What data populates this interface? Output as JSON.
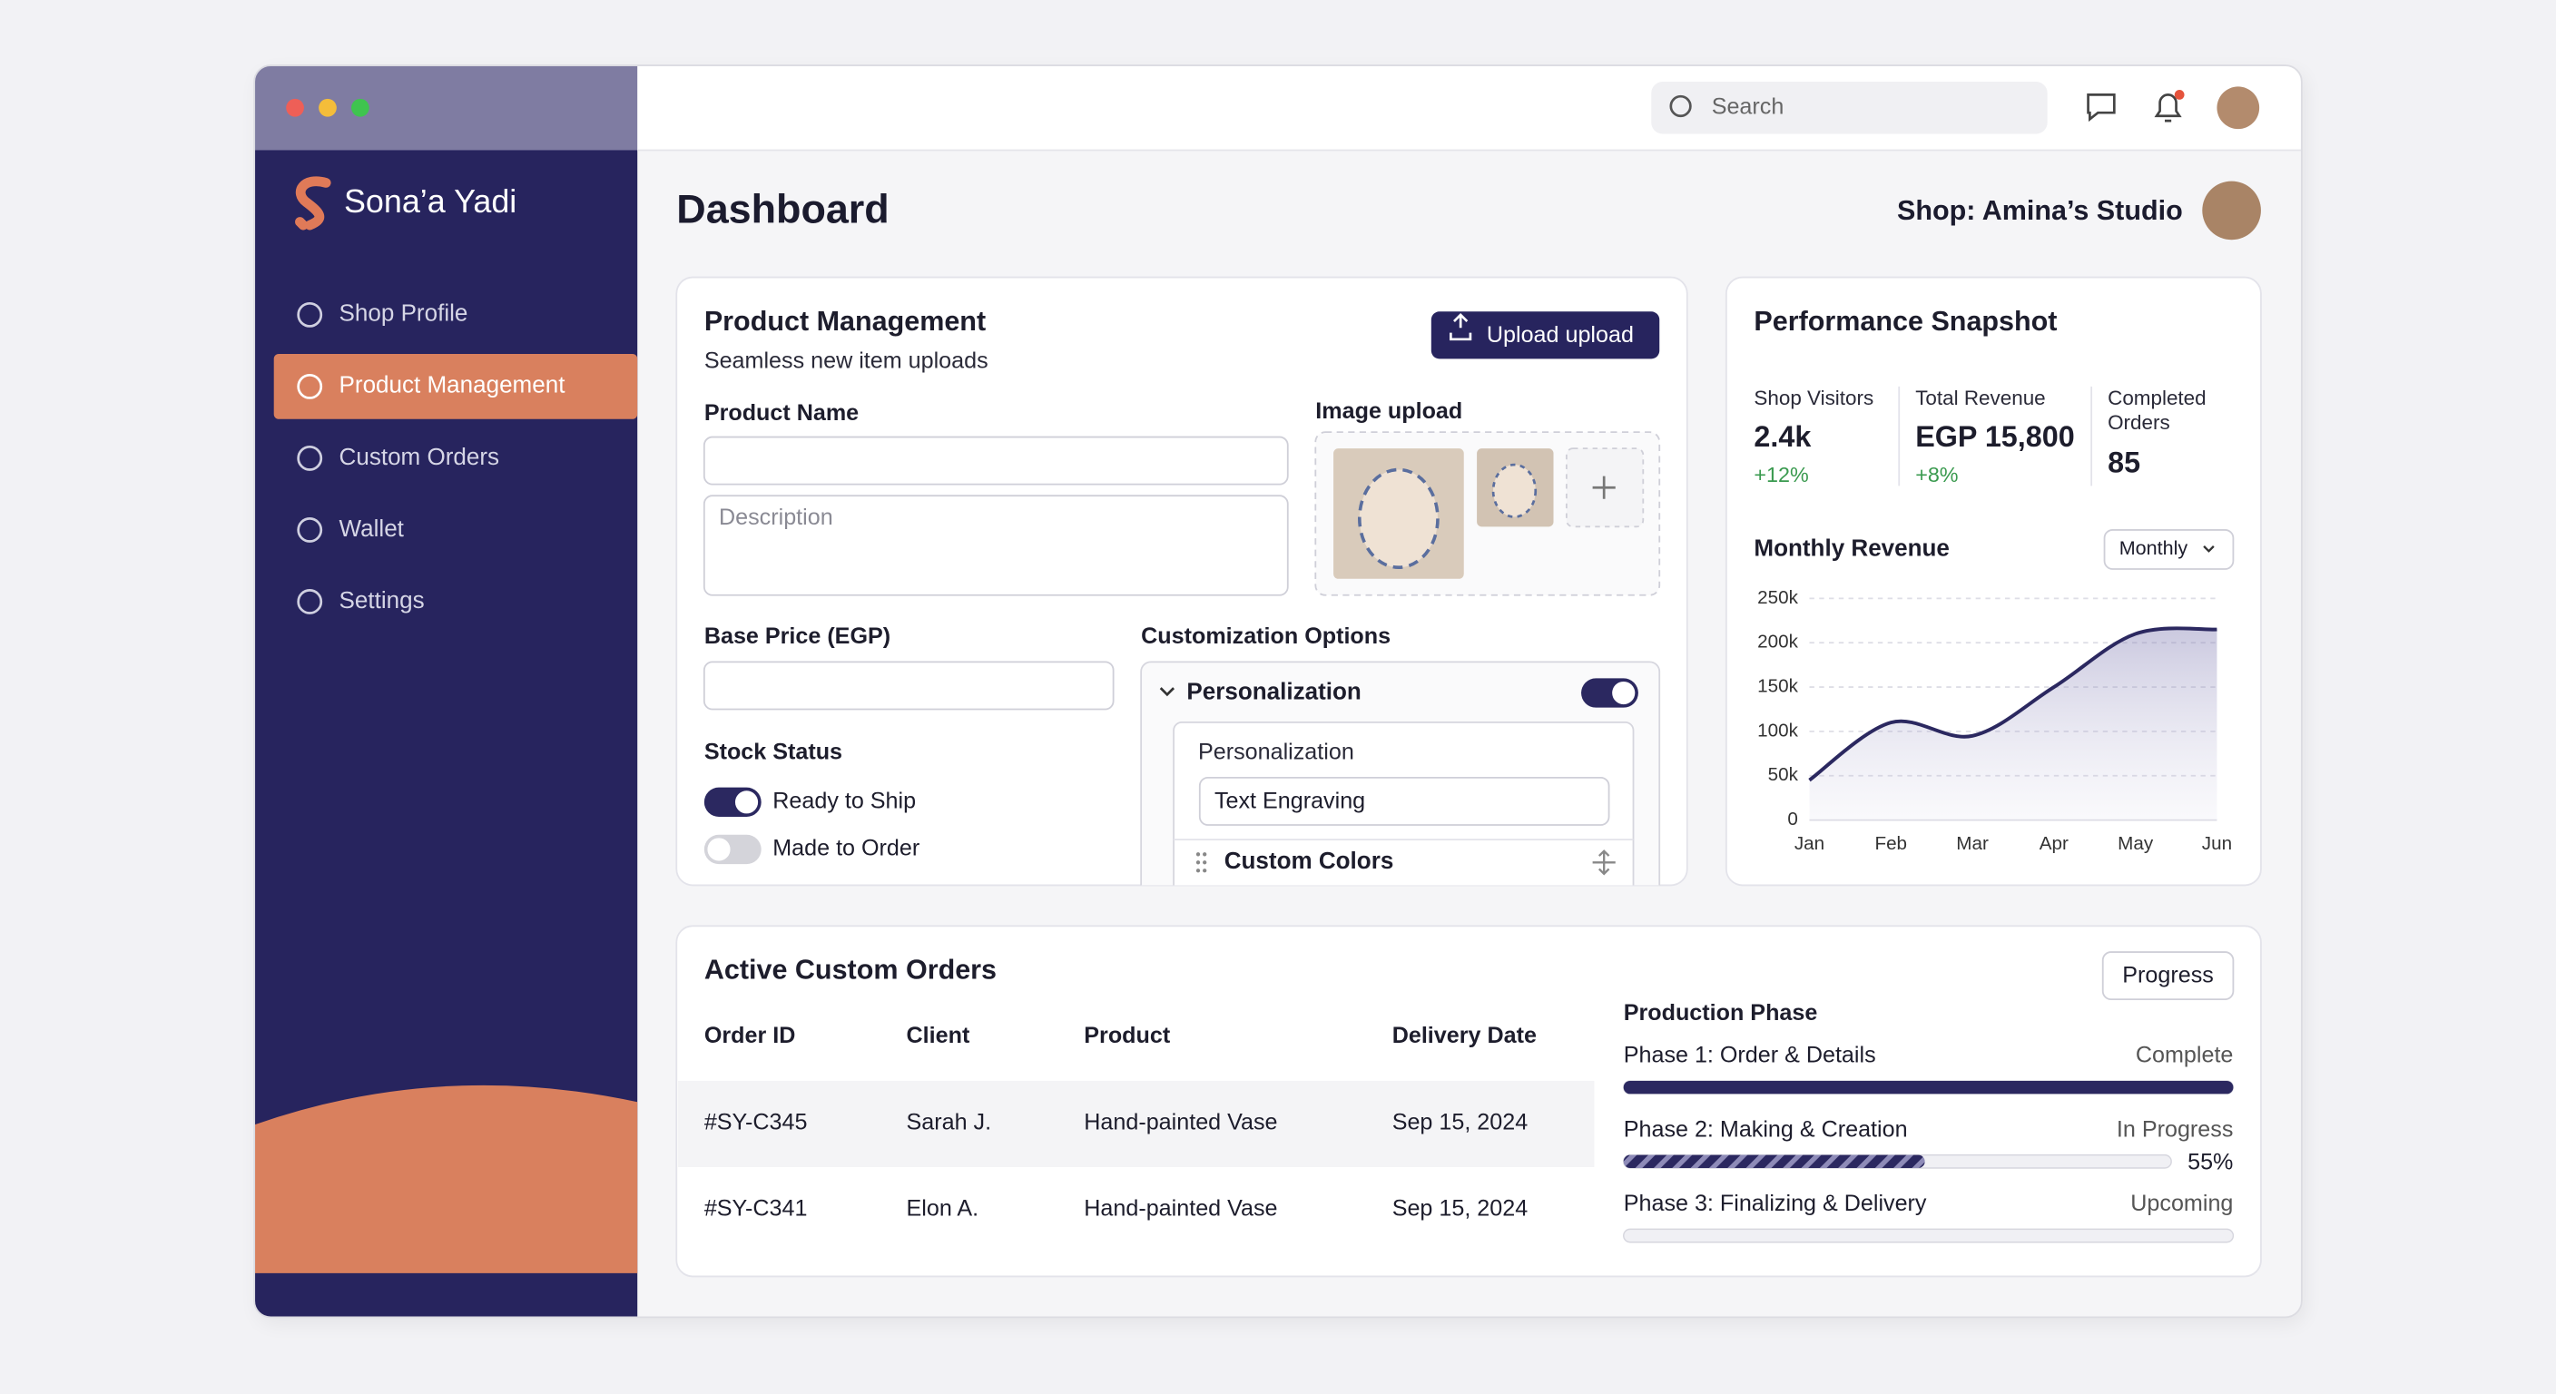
{
  "app": {
    "brand": "Sona’a Yadi"
  },
  "sidebar": {
    "items": [
      "Shop Profile",
      "Product Management",
      "Custom Orders",
      "Wallet",
      "Settings"
    ],
    "active": 1
  },
  "topbar": {
    "search_placeholder": "Search"
  },
  "header": {
    "title": "Dashboard",
    "shop": "Shop: Amina’s Studio"
  },
  "product_management": {
    "title": "Product Management",
    "subtitle": "Seamless new item uploads",
    "button": "Upload upload",
    "product_name_label": "Product Name",
    "description_placeholder": "Description",
    "image_upload_label": "Image upload",
    "base_price_label": "Base Price (EGP)",
    "stock_status_label": "Stock Status",
    "stock_options": [
      {
        "label": "Ready to Ship",
        "on": true
      },
      {
        "label": "Made to Order",
        "on": false
      }
    ],
    "customization_label": "Customization Options",
    "personalization": {
      "title": "Personalization",
      "on": true,
      "sub_label": "Personalization",
      "input": "Text Engraving"
    },
    "custom_colors": "Custom Colors"
  },
  "performance": {
    "title": "Performance Snapshot",
    "stats": [
      {
        "label": "Shop Visitors",
        "value": "2.4k",
        "change": "+12%"
      },
      {
        "label": "Total Revenue",
        "value": "EGP 15,800",
        "change": "+8%"
      },
      {
        "label": "Completed Orders",
        "value": "85"
      }
    ],
    "chart_title": "Monthly Revenue",
    "dropdown": "Monthly",
    "chart": {
      "type": "line",
      "categories": [
        "Jan",
        "Feb",
        "Mar",
        "Apr",
        "May",
        "Jun"
      ],
      "values": [
        45000,
        110000,
        95000,
        150000,
        210000,
        215000
      ],
      "color": "#2b2860",
      "ylim": [
        0,
        250000
      ],
      "yticks": [
        0,
        {
          "value": 50000,
          "label": "50k"
        },
        {
          "value": 100000,
          "label": "100k"
        },
        {
          "value": 150000,
          "label": "150k"
        },
        {
          "value": 200000,
          "label": "200k"
        },
        {
          "value": 250000,
          "label": "250k"
        }
      ],
      "grid": true
    }
  },
  "orders": {
    "title": "Active Custom Orders",
    "columns": [
      "Order ID",
      "Client",
      "Product",
      "Delivery Date"
    ],
    "rows": [
      [
        "#SY-C345",
        "Sarah J.",
        "Hand-painted Vase",
        "Sep 15, 2024"
      ],
      [
        "#SY-C341",
        "Elon A.",
        "Hand-painted Vase",
        "Sep 15, 2024"
      ]
    ],
    "progress_button": "Progress",
    "phase_title": "Production Phase",
    "phases": [
      {
        "name": "Phase 1: Order & Details",
        "status": "Complete",
        "progress": 100
      },
      {
        "name": "Phase 2: Making & Creation",
        "status": "In Progress",
        "progress": 55,
        "progress_label": "55%"
      },
      {
        "name": "Phase 3: Finalizing & Delivery",
        "status": "Upcoming",
        "progress": 0
      }
    ]
  }
}
